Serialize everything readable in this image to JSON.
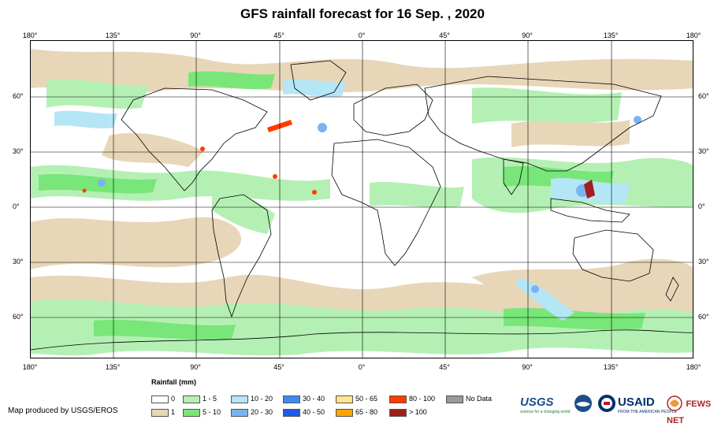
{
  "title": "GFS rainfall forecast for 16 Sep. , 2020",
  "axes": {
    "top_labels": [
      "180°",
      "135°",
      "90°",
      "45°",
      "0°",
      "45°",
      "90°",
      "135°",
      "180°"
    ],
    "bottom_labels": [
      "180°",
      "135°",
      "90°",
      "45°",
      "0°",
      "45°",
      "90°",
      "135°",
      "180°"
    ],
    "left_labels": [
      "60°",
      "30°",
      "0°",
      "30°",
      "60°"
    ],
    "right_labels": [
      "60°",
      "30°",
      "0°",
      "30°",
      "60°"
    ]
  },
  "legend": {
    "title": "Rainfall (mm)",
    "items": [
      {
        "label": "0",
        "color": "#ffffff"
      },
      {
        "label": "1",
        "color": "#e8d6b8"
      },
      {
        "label": "1 - 5",
        "color": "#b4f0b4"
      },
      {
        "label": "5 - 10",
        "color": "#78e678"
      },
      {
        "label": "10 - 20",
        "color": "#b4e6f5"
      },
      {
        "label": "20 - 30",
        "color": "#78b4f0"
      },
      {
        "label": "30 - 40",
        "color": "#3c8cf0"
      },
      {
        "label": "40 - 50",
        "color": "#1e5ae6"
      },
      {
        "label": "50 - 65",
        "color": "#ffe68c"
      },
      {
        "label": "65 - 80",
        "color": "#ffa500"
      },
      {
        "label": "80 - 100",
        "color": "#ff3c00"
      },
      {
        "label": "> 100",
        "color": "#a01e1e"
      },
      {
        "label": "No Data",
        "color": "#999999"
      }
    ]
  },
  "credit": "Map produced by USGS/EROS",
  "logos": {
    "usgs": "USGS",
    "usgs_tagline": "science for a changing world",
    "usaid": "USAID",
    "usaid_tagline": "FROM THE AMERICAN PEOPLE",
    "fews": "FEWS NET"
  }
}
